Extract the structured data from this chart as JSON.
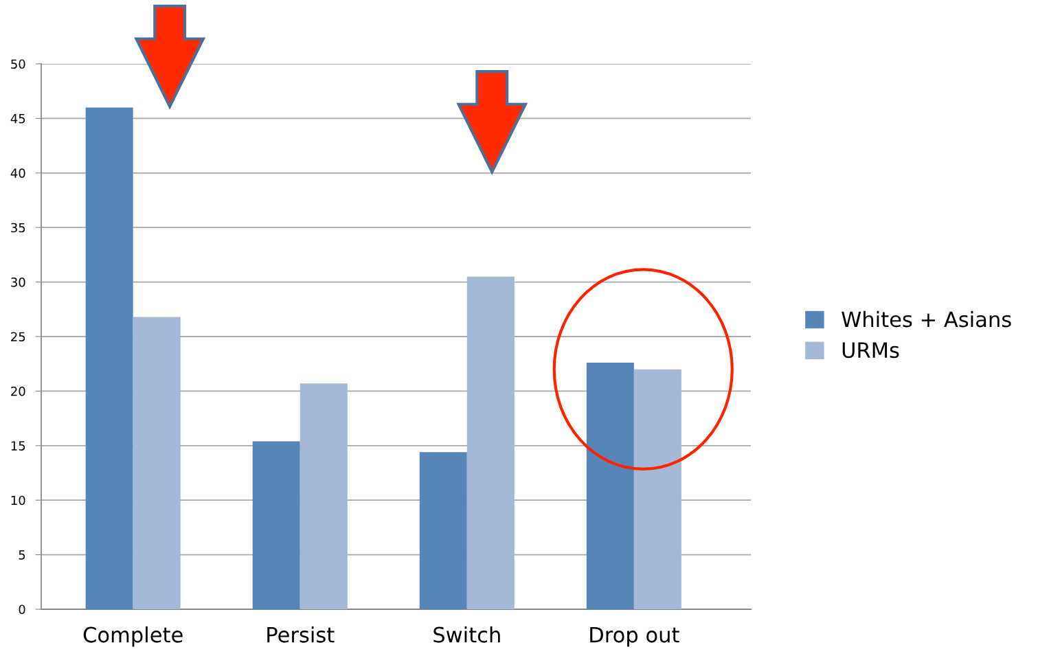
{
  "chart_data": {
    "type": "bar",
    "categories": [
      "Complete",
      "Persist",
      "Switch",
      "Drop out"
    ],
    "series": [
      {
        "name": "Whites + Asians",
        "color": "#5686b8",
        "values": [
          46,
          15.4,
          14.4,
          22.6
        ]
      },
      {
        "name": "URMs",
        "color": "#a4b8d8",
        "values": [
          26.8,
          20.7,
          30.5,
          22.0
        ]
      }
    ],
    "ylim": [
      0,
      50
    ],
    "yticks": [
      0,
      5,
      10,
      15,
      20,
      25,
      30,
      35,
      40,
      45,
      50
    ],
    "grid": "y",
    "legend": "right"
  }
}
